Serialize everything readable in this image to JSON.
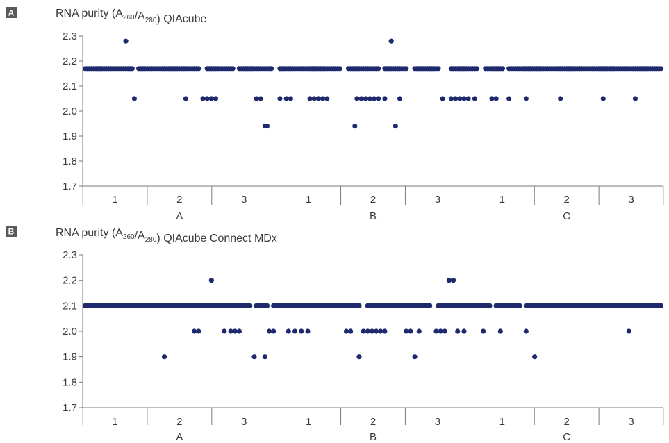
{
  "colors": {
    "marker": "#1f2a6e",
    "axis": "#7a7a7a",
    "badge": "#5a5a5a"
  },
  "chart_data": [
    {
      "type": "scatter",
      "badge": "A",
      "title_main": "RNA purity (A",
      "title_sub1": "260",
      "title_mid": "/A",
      "title_sub2": "280",
      "title_end": ") QIAcube",
      "ylim": [
        1.7,
        2.3
      ],
      "yticks": [
        "2.3",
        "2.2",
        "2.1",
        "2.0",
        "1.9",
        "1.8",
        "1.7"
      ],
      "yvals": [
        2.3,
        2.2,
        2.1,
        2.0,
        1.9,
        1.8,
        1.7
      ],
      "sample_count": 270,
      "subgroups": [
        "1",
        "2",
        "3",
        "1",
        "2",
        "3",
        "1",
        "2",
        "3"
      ],
      "groups": [
        "A",
        "B",
        "C"
      ],
      "baseline": 2.17,
      "baseline_gaps": [
        [
          23,
          24
        ],
        [
          54,
          56
        ],
        [
          70,
          71
        ],
        [
          88,
          90
        ],
        [
          120,
          122
        ],
        [
          138,
          139
        ],
        [
          151,
          153
        ],
        [
          166,
          170
        ],
        [
          184,
          186
        ],
        [
          196,
          197
        ]
      ],
      "outliers": [
        [
          19,
          2.28
        ],
        [
          23,
          2.05
        ],
        [
          47,
          2.05
        ],
        [
          55,
          2.05
        ],
        [
          57,
          2.05
        ],
        [
          59,
          2.05
        ],
        [
          61,
          2.05
        ],
        [
          80,
          2.05
        ],
        [
          82,
          2.05
        ],
        [
          84,
          1.94
        ],
        [
          85,
          1.94
        ],
        [
          91,
          2.05
        ],
        [
          94,
          2.05
        ],
        [
          96,
          2.05
        ],
        [
          105,
          2.05
        ],
        [
          107,
          2.05
        ],
        [
          109,
          2.05
        ],
        [
          111,
          2.05
        ],
        [
          113,
          2.05
        ],
        [
          127,
          2.05
        ],
        [
          129,
          2.05
        ],
        [
          131,
          2.05
        ],
        [
          133,
          2.05
        ],
        [
          135,
          2.05
        ],
        [
          137,
          2.05
        ],
        [
          140,
          2.05
        ],
        [
          126,
          1.94
        ],
        [
          143,
          2.28
        ],
        [
          145,
          1.94
        ],
        [
          147,
          2.05
        ],
        [
          167,
          2.05
        ],
        [
          171,
          2.05
        ],
        [
          173,
          2.05
        ],
        [
          175,
          2.05
        ],
        [
          177,
          2.05
        ],
        [
          179,
          2.05
        ],
        [
          182,
          2.05
        ],
        [
          190,
          2.05
        ],
        [
          192,
          2.05
        ],
        [
          198,
          2.05
        ],
        [
          206,
          2.05
        ],
        [
          222,
          2.05
        ],
        [
          242,
          2.05
        ],
        [
          257,
          2.05
        ]
      ]
    },
    {
      "type": "scatter",
      "badge": "B",
      "title_main": "RNA purity (A",
      "title_sub1": "260",
      "title_mid": "/A",
      "title_sub2": "280",
      "title_end": ") QIAcube Connect MDx",
      "ylim": [
        1.7,
        2.3
      ],
      "yticks": [
        "2.3",
        "2.2",
        "2.1",
        "2.0",
        "1.9",
        "1.8",
        "1.7"
      ],
      "yvals": [
        2.3,
        2.2,
        2.1,
        2.0,
        1.9,
        1.8,
        1.7
      ],
      "sample_count": 270,
      "subgroups": [
        "1",
        "2",
        "3",
        "1",
        "2",
        "3",
        "1",
        "2",
        "3"
      ],
      "groups": [
        "A",
        "B",
        "C"
      ],
      "baseline": 2.1,
      "baseline_gaps": [
        [
          78,
          79
        ],
        [
          86,
          87
        ],
        [
          129,
          131
        ],
        [
          162,
          164
        ],
        [
          190,
          191
        ],
        [
          204,
          205
        ]
      ],
      "outliers": [
        [
          37,
          1.9
        ],
        [
          51,
          2.0
        ],
        [
          53,
          2.0
        ],
        [
          59,
          2.2
        ],
        [
          65,
          2.0
        ],
        [
          68,
          2.0
        ],
        [
          70,
          2.0
        ],
        [
          72,
          2.0
        ],
        [
          79,
          1.9
        ],
        [
          84,
          1.9
        ],
        [
          86,
          2.0
        ],
        [
          88,
          2.0
        ],
        [
          95,
          2.0
        ],
        [
          98,
          2.0
        ],
        [
          101,
          2.0
        ],
        [
          104,
          2.0
        ],
        [
          122,
          2.0
        ],
        [
          124,
          2.0
        ],
        [
          128,
          1.9
        ],
        [
          130,
          2.0
        ],
        [
          132,
          2.0
        ],
        [
          134,
          2.0
        ],
        [
          136,
          2.0
        ],
        [
          138,
          2.0
        ],
        [
          140,
          2.0
        ],
        [
          150,
          2.0
        ],
        [
          152,
          2.0
        ],
        [
          154,
          1.9
        ],
        [
          156,
          2.0
        ],
        [
          164,
          2.0
        ],
        [
          166,
          2.0
        ],
        [
          168,
          2.0
        ],
        [
          170,
          2.2
        ],
        [
          172,
          2.2
        ],
        [
          174,
          2.0
        ],
        [
          177,
          2.0
        ],
        [
          186,
          2.0
        ],
        [
          194,
          2.0
        ],
        [
          206,
          2.0
        ],
        [
          210,
          1.9
        ],
        [
          254,
          2.0
        ]
      ]
    }
  ]
}
